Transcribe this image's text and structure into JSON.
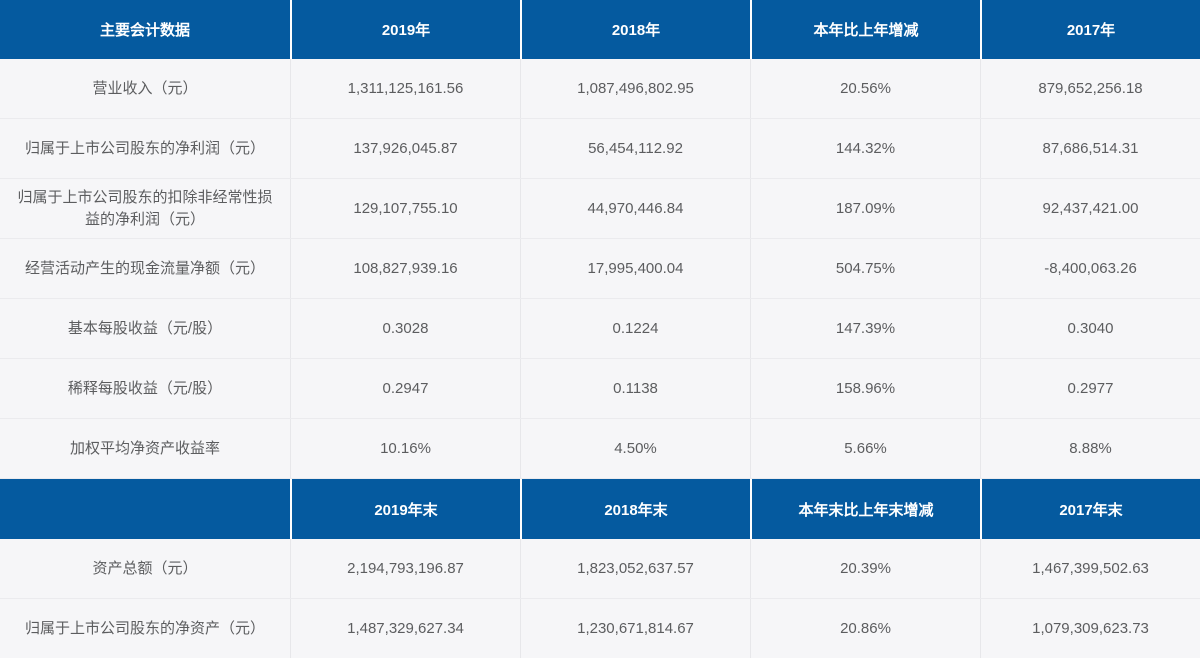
{
  "theme": {
    "header_bg": "#055A9F",
    "header_text": "#FFFFFF",
    "row_bg": "#F6F6F8",
    "row_divider": "#EBEBEE",
    "cell_divider": "#E7E7EA",
    "cell_text": "#5C5D5F"
  },
  "annual": {
    "columns": [
      "主要会计数据",
      "2019年",
      "2018年",
      "本年比上年增减",
      "2017年"
    ],
    "rows": [
      [
        "营业收入（元）",
        "1,311,125,161.56",
        "1,087,496,802.95",
        "20.56%",
        "879,652,256.18"
      ],
      [
        "归属于上市公司股东的净利润（元）",
        "137,926,045.87",
        "56,454,112.92",
        "144.32%",
        "87,686,514.31"
      ],
      [
        "归属于上市公司股东的扣除非经常性损益的净利润（元）",
        "129,107,755.10",
        "44,970,446.84",
        "187.09%",
        "92,437,421.00"
      ],
      [
        "经营活动产生的现金流量净额（元）",
        "108,827,939.16",
        "17,995,400.04",
        "504.75%",
        "-8,400,063.26"
      ],
      [
        "基本每股收益（元/股）",
        "0.3028",
        "0.1224",
        "147.39%",
        "0.3040"
      ],
      [
        "稀释每股收益（元/股）",
        "0.2947",
        "0.1138",
        "158.96%",
        "0.2977"
      ],
      [
        "加权平均净资产收益率",
        "10.16%",
        "4.50%",
        "5.66%",
        "8.88%"
      ]
    ]
  },
  "yearend": {
    "columns": [
      "",
      "2019年末",
      "2018年末",
      "本年末比上年末增减",
      "2017年末"
    ],
    "rows": [
      [
        "资产总额（元）",
        "2,194,793,196.87",
        "1,823,052,637.57",
        "20.39%",
        "1,467,399,502.63"
      ],
      [
        "归属于上市公司股东的净资产（元）",
        "1,487,329,627.34",
        "1,230,671,814.67",
        "20.86%",
        "1,079,309,623.73"
      ]
    ]
  }
}
